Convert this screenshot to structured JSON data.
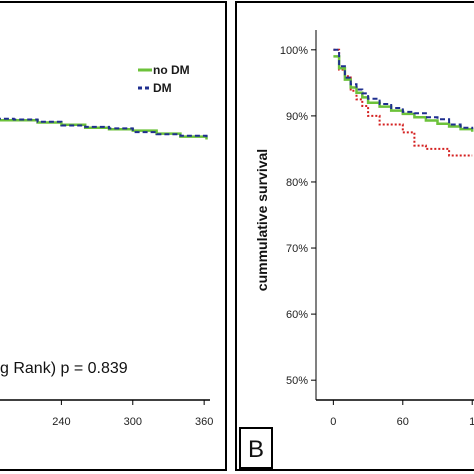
{
  "chart_data": [
    {
      "type": "line",
      "panel": "",
      "xticks": [
        "240",
        "300",
        "360"
      ],
      "xlim": [
        180,
        375
      ],
      "ylim": [
        50,
        100
      ],
      "legend": {
        "position": "top-right"
      },
      "series": [
        {
          "name": "no DM",
          "color": "#6cc23a",
          "style": "solid",
          "x": [
            185,
            200,
            220,
            240,
            260,
            280,
            300,
            320,
            340,
            362
          ],
          "y": [
            87.8,
            87.8,
            87.5,
            87.2,
            86.8,
            86.6,
            86.4,
            86.0,
            85.6,
            85.2
          ]
        },
        {
          "name": "DM",
          "color": "#1f2f8f",
          "style": "dashed",
          "x": [
            185,
            200,
            220,
            240,
            260,
            280,
            300,
            320,
            340,
            362
          ],
          "y": [
            88.0,
            87.9,
            87.6,
            87.1,
            86.9,
            86.7,
            86.2,
            85.9,
            85.7,
            85.3
          ]
        }
      ],
      "annotation": "g Rank) p = 0.839"
    },
    {
      "type": "line",
      "panel": "B",
      "xticks": [
        "0",
        "60",
        "1"
      ],
      "yticks": [
        "100%",
        "90%",
        "80%",
        "70%",
        "60%",
        "50%"
      ],
      "ylabel": "cummulative survival",
      "xlim": [
        -15,
        125
      ],
      "ylim": [
        47,
        103
      ],
      "series": [
        {
          "name": "no DM",
          "color": "#6cc23a",
          "style": "solid",
          "x": [
            0,
            5,
            10,
            15,
            20,
            25,
            30,
            40,
            50,
            60,
            70,
            80,
            90,
            100,
            110,
            120
          ],
          "y": [
            99,
            97.2,
            95.5,
            94.3,
            93.5,
            92.8,
            92.0,
            91.4,
            90.8,
            90.3,
            89.8,
            89.3,
            88.8,
            88.4,
            88.0,
            87.6
          ]
        },
        {
          "name": "DM",
          "color": "#1f2f8f",
          "style": "dashed",
          "x": [
            0,
            5,
            10,
            15,
            20,
            25,
            30,
            40,
            50,
            60,
            70,
            80,
            90,
            100,
            110,
            120
          ],
          "y": [
            100,
            97.5,
            95.8,
            94.8,
            94.0,
            93.4,
            92.6,
            91.8,
            91.2,
            90.6,
            90.4,
            89.8,
            89.5,
            88.7,
            88.2,
            88.0
          ]
        },
        {
          "name": "",
          "color": "#d42020",
          "style": "dotted",
          "x": [
            0,
            5,
            10,
            15,
            20,
            25,
            30,
            40,
            50,
            60,
            70,
            80,
            90,
            100,
            110,
            120
          ],
          "y": [
            100,
            97.0,
            96.0,
            93.8,
            92.5,
            91.5,
            90.0,
            88.7,
            88.7,
            87.5,
            85.5,
            85.0,
            85.0,
            84.0,
            84.0,
            84.0
          ]
        }
      ]
    }
  ],
  "panelA": {
    "legend_no_dm": "no DM",
    "legend_dm": "DM",
    "pvalue_text": "g Rank) p = 0.839"
  },
  "panelB": {
    "letter": "B",
    "ylabel": "cummulative survival"
  }
}
